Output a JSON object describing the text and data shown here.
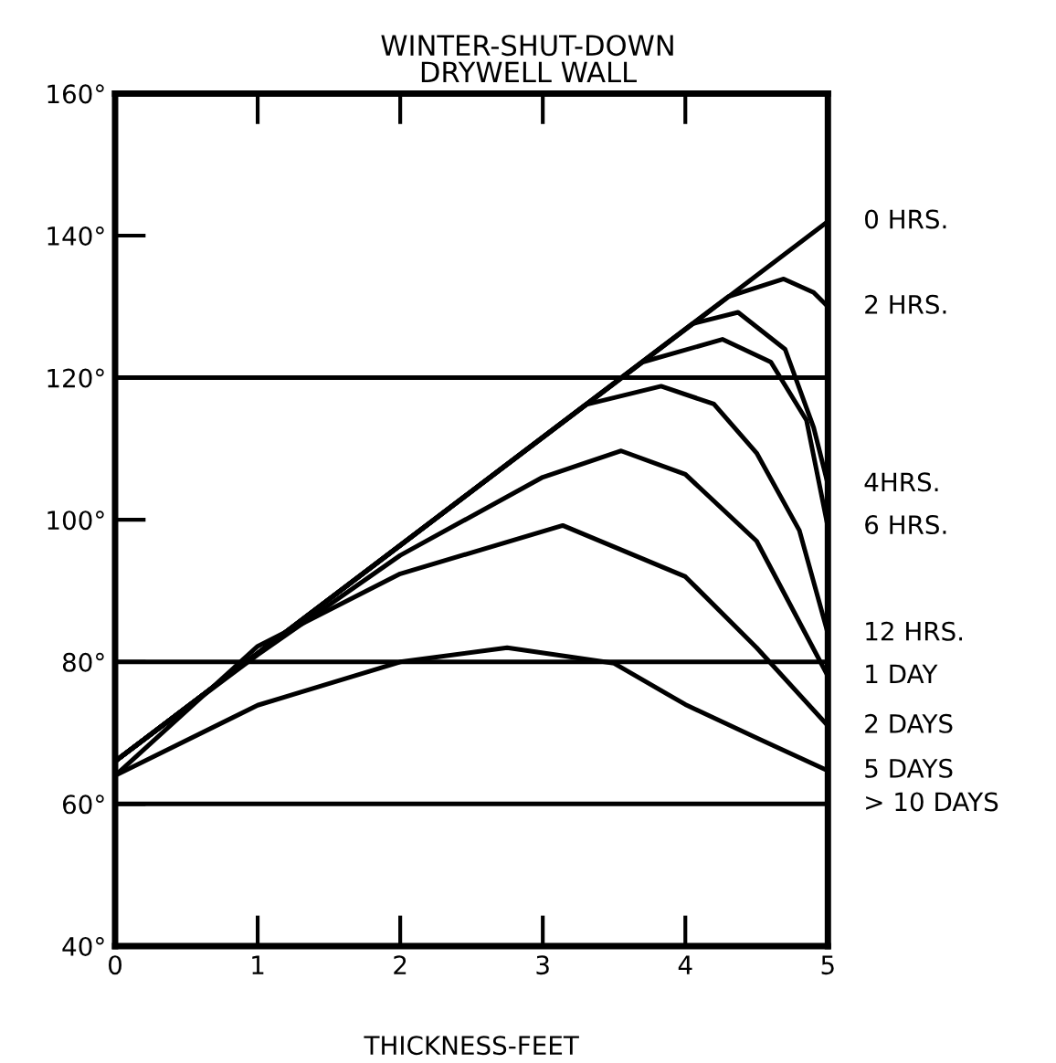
{
  "chart_data": {
    "type": "line",
    "title": "WINTER-SHUT-DOWN",
    "subtitle": "DRYWELL WALL",
    "xlabel": "THICKNESS-FEET",
    "xlim": [
      0,
      5
    ],
    "xticks": [
      0,
      1,
      2,
      3,
      4,
      5
    ],
    "ylim": [
      40,
      160
    ],
    "yticks": [
      {
        "value": 40,
        "label": "40°"
      },
      {
        "value": 60,
        "label": "60°"
      },
      {
        "value": 80,
        "label": "80°"
      },
      {
        "value": 100,
        "label": "100°"
      },
      {
        "value": 120,
        "label": "120°"
      },
      {
        "value": 140,
        "label": "140°"
      },
      {
        "value": 160,
        "label": "160°"
      }
    ],
    "grid": false,
    "legend": false,
    "marker": "none",
    "line_style": "solid",
    "ref_lines": [
      {
        "axis": "y",
        "value": 80,
        "color": "#000000"
      },
      {
        "axis": "y",
        "value": 120,
        "color": "#000000"
      }
    ],
    "series": [
      {
        "name": "0 HRS.",
        "color": "#000000",
        "x": [
          0,
          5
        ],
        "values": [
          66,
          142
        ]
      },
      {
        "name": "2 HRS.",
        "color": "#000000",
        "x": [
          0,
          4.3,
          4.69,
          4.9,
          5
        ],
        "values": [
          66,
          131.4,
          133.9,
          132,
          130
        ]
      },
      {
        "name": "4HRS.",
        "color": "#000000",
        "x": [
          0,
          4.05,
          4.37,
          4.7,
          4.9,
          5
        ],
        "values": [
          66,
          127.6,
          129.2,
          124,
          113,
          105
        ]
      },
      {
        "name": "6 HRS.",
        "color": "#000000",
        "x": [
          0,
          3.7,
          4.26,
          4.6,
          4.85,
          5
        ],
        "values": [
          66,
          122.2,
          125.4,
          122.2,
          114,
          99
        ]
      },
      {
        "name": "12 HRS.",
        "color": "#000000",
        "x": [
          0,
          3.3,
          3.83,
          4.2,
          4.5,
          4.8,
          5
        ],
        "values": [
          66,
          116.2,
          118.8,
          116.3,
          109.4,
          98.5,
          84
        ]
      },
      {
        "name": "1 DAY",
        "color": "#000000",
        "x": [
          0,
          1,
          2,
          3,
          3.55,
          4,
          4.5,
          5
        ],
        "values": [
          66,
          81,
          95,
          106,
          109.7,
          106.4,
          97,
          78
        ]
      },
      {
        "name": "2 DAYS",
        "color": "#000000",
        "x": [
          0,
          1,
          2,
          3.14,
          4,
          4.5,
          5
        ],
        "values": [
          64,
          82.2,
          92.4,
          99.2,
          92,
          82,
          71
        ]
      },
      {
        "name": "5 DAYS",
        "color": "#000000",
        "x": [
          0,
          1,
          2,
          2.75,
          3.5,
          4,
          4.5,
          5
        ],
        "values": [
          64,
          73.9,
          80,
          82,
          79.8,
          74,
          69.3,
          64.7
        ]
      },
      {
        "name": "> 10 DAYS",
        "color": "#000000",
        "x": [
          0,
          5
        ],
        "values": [
          60,
          60
        ]
      }
    ]
  }
}
